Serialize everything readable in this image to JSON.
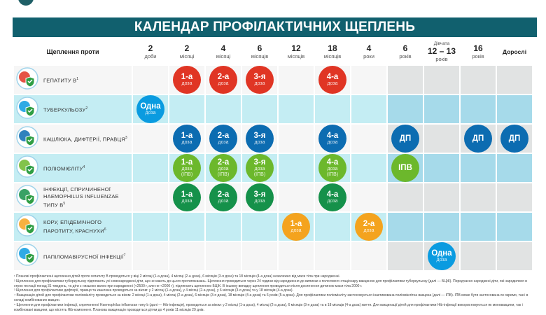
{
  "title": "КАЛЕНДАР ПРОФІЛАКТИЧНИХ ЩЕПЛЕНЬ",
  "header": {
    "label": "Щеплення проти",
    "columns": [
      {
        "num": "2",
        "unit": "доби"
      },
      {
        "num": "2",
        "unit": "місяці"
      },
      {
        "num": "4",
        "unit": "місяці"
      },
      {
        "num": "6",
        "unit": "місяців"
      },
      {
        "num": "12",
        "unit": "місяців"
      },
      {
        "num": "18",
        "unit": "місяців"
      },
      {
        "num": "4",
        "unit": "роки"
      },
      {
        "num": "6",
        "unit": "років"
      },
      {
        "pre": "Дівчата",
        "num": "12 – 13",
        "unit": "років"
      },
      {
        "num": "16",
        "unit": "років"
      },
      {
        "adult": "Дорослі"
      }
    ]
  },
  "colors": {
    "title": "#11606e",
    "red": "#e03524",
    "blue": "#0c6cb1",
    "lightgreen": "#6cb82c",
    "green": "#15914a",
    "orange": "#f4a31e",
    "sky": "#0a9be0"
  },
  "rows": [
    {
      "name": "hepatitis-b",
      "icon": "liver-shield-icon",
      "label": "Гепатиту В",
      "sup": "1",
      "tone": "white",
      "color": "#e03524",
      "cells": [
        null,
        {
          "m": "1-а",
          "s": "доза"
        },
        {
          "m": "2-а",
          "s": "доза"
        },
        {
          "m": "3-я",
          "s": "доза"
        },
        null,
        {
          "m": "4-а",
          "s": "доза"
        },
        null,
        null,
        null,
        null,
        null
      ]
    },
    {
      "name": "tuberculosis",
      "icon": "lungs-icon",
      "label": "Туберкульозу",
      "sup": "2",
      "tone": "cyan",
      "color": "#0a9be0",
      "cells": [
        {
          "m": "Одна",
          "s": "доза"
        },
        null,
        null,
        null,
        null,
        null,
        null,
        null,
        null,
        null,
        null
      ]
    },
    {
      "name": "pertussis-diphtheria-tetanus",
      "icon": "coughing-person-icon",
      "label": "Кашлюка, дифтерії, правця",
      "sup": "3",
      "tone": "white",
      "color": "#0c6cb1",
      "cells": [
        null,
        {
          "m": "1-а",
          "s": "доза"
        },
        {
          "m": "2-а",
          "s": "доза"
        },
        {
          "m": "3-я",
          "s": "доза"
        },
        null,
        {
          "m": "4-а",
          "s": "доза"
        },
        null,
        {
          "m": "ДП"
        },
        null,
        {
          "m": "ДП"
        },
        {
          "m": "ДП"
        }
      ]
    },
    {
      "name": "polio",
      "icon": "running-child-icon",
      "label": "Поліомієліту",
      "sup": "4",
      "tone": "cyan",
      "color": "#6cb82c",
      "cells": [
        null,
        {
          "m": "1-а",
          "s": "доза",
          "t": "(ІПВ)"
        },
        {
          "m": "2-а",
          "s": "доза",
          "t": "(ІПВ)"
        },
        {
          "m": "3-я",
          "s": "доза",
          "t": "(ІПВ)"
        },
        null,
        {
          "m": "4-а",
          "s": "доза",
          "t": "(ІПВ)"
        },
        null,
        {
          "m": "ІПВ"
        },
        null,
        null,
        null
      ]
    },
    {
      "name": "hib",
      "icon": "virus-crossed-icon",
      "label": "Інфекції, спричиненої Haemophilus influenzae типу b",
      "sup": "5",
      "tone": "white",
      "color": "#15914a",
      "cells": [
        null,
        {
          "m": "1-а",
          "s": "доза"
        },
        {
          "m": "2-а",
          "s": "доза"
        },
        {
          "m": "3-я",
          "s": "доза"
        },
        null,
        {
          "m": "4-а",
          "s": "доза"
        },
        null,
        null,
        null,
        null,
        null
      ]
    },
    {
      "name": "mmr",
      "icon": "viruses-shield-icon",
      "label": "Кору, епідемічного паротиту, краснухи",
      "sup": "6",
      "tone": "cyan",
      "color": "#f4a31e",
      "cells": [
        null,
        null,
        null,
        null,
        {
          "m": "1-а",
          "s": "доза"
        },
        null,
        {
          "m": "2-а",
          "s": "доза"
        },
        null,
        null,
        null,
        null
      ]
    },
    {
      "name": "hpv",
      "icon": "dna-shield-icon",
      "label": "Папіломавірусної інфекції",
      "sup": "7",
      "tone": "white",
      "color": "#0a9be0",
      "cells": [
        null,
        null,
        null,
        null,
        null,
        null,
        null,
        null,
        {
          "m": "Одна",
          "s": "доза"
        },
        null,
        null
      ]
    }
  ],
  "footnotes": [
    "¹ Планові профілактичні щеплення дітей проти гепатиту В проводяться у віці 2 місяці (1-а доза), 4 місяці (2-а доза), 6 місяців (3-я доза) та 18 місяців (4-а доза) незалежно від маси тіла при народженні.",
    "² Щепленню для профілактики туберкульозу підлягають усі новонароджені діти, що не мають до цього протипоказань. Щеплення проводиться через 24 години від народження до виписки з пологового стаціонару вакциною для профілактики туберкульозу (далі — БЦЖ). Передчасно народжені діти, які народилися в строк гестації понад 31 тиждень, та діти з низькою вагою при народженні (<2500 г, але не <2000 г), підлягають щепленню БЦЖ. В іншому випадку щеплення проводиться після досягнення дитиною маси тіла 2000 г.",
    "³ Щеплення для профілактики дифтерії, правця та кашлюка проводяться за віком: у 2 місяці (1-а доза), у 4 місяці (2-а доза), у 6 місяців (3-я доза) та у 18 місяців (4-а доза).",
    "⁴ Вакцинація дітей для профілактики поліомієліту проводиться за віком: 2 місяці (1-а доза), 4 місяці (2-а доза), 6 місяців (3-я доза), 18 місяців (4-а доза) та 6 років (5-а доза). Для профілактики поліомієліту застосовується інактивована поліомієлітна вакцина (далі — ІПВ). ІПВ може бути застосована як окремо, так і в складі комбінованих вакцин.",
    "⁵ Щеплення для профілактики інфекції, спричиненої Haemophilus influenzae типу b (далі — Hib-інфекція), проводиться за віком: у 2 місяці (1-а доза), 4 місяці (2-а доза), 6 місяців (3-я доза) та в 18 місяців (4-а доза) життя. Для вакцинації дітей для профілактики Hib-інфекції використовуються як моновакцини, так і комбіновані вакцини, що містять Hib-компонент. Планова вакцинація проводиться дітям до 4 років 11 місяців 29 днів."
  ]
}
